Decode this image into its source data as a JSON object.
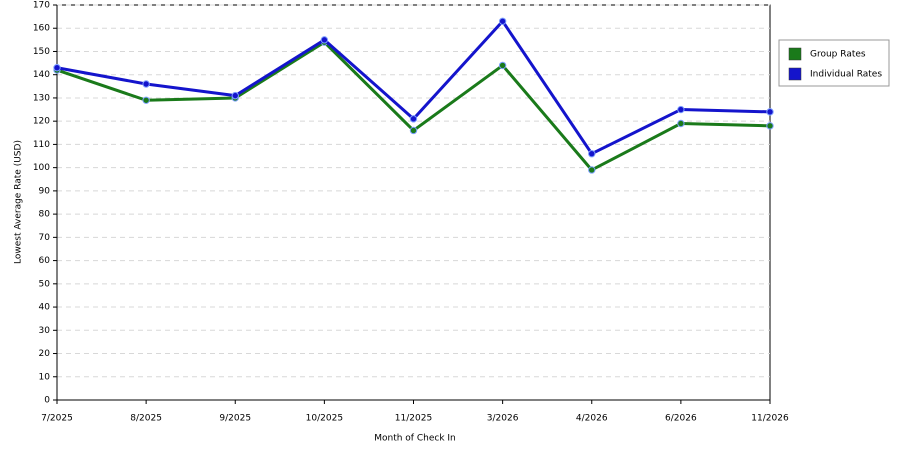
{
  "chart_data": {
    "type": "line",
    "x_label": "Month of Check In",
    "y_label": "Lowest Average Rate (USD)",
    "categories": [
      "7/2025",
      "8/2025",
      "9/2025",
      "10/2025",
      "11/2025",
      "3/2026",
      "4/2026",
      "6/2026",
      "11/2026"
    ],
    "series": [
      {
        "name": "Group Rates",
        "color": "#1a7a1a",
        "values": [
          142,
          129,
          130,
          154,
          116,
          144,
          99,
          119,
          118
        ]
      },
      {
        "name": "Individual Rates",
        "color": "#1414cc",
        "values": [
          143,
          136,
          131,
          155,
          121,
          163,
          106,
          125,
          124
        ]
      }
    ],
    "ylim": [
      0,
      170
    ],
    "yticks": [
      0,
      10,
      20,
      30,
      40,
      50,
      60,
      70,
      80,
      90,
      100,
      110,
      120,
      130,
      140,
      150,
      160,
      170
    ],
    "grid": true,
    "legend": "right"
  }
}
